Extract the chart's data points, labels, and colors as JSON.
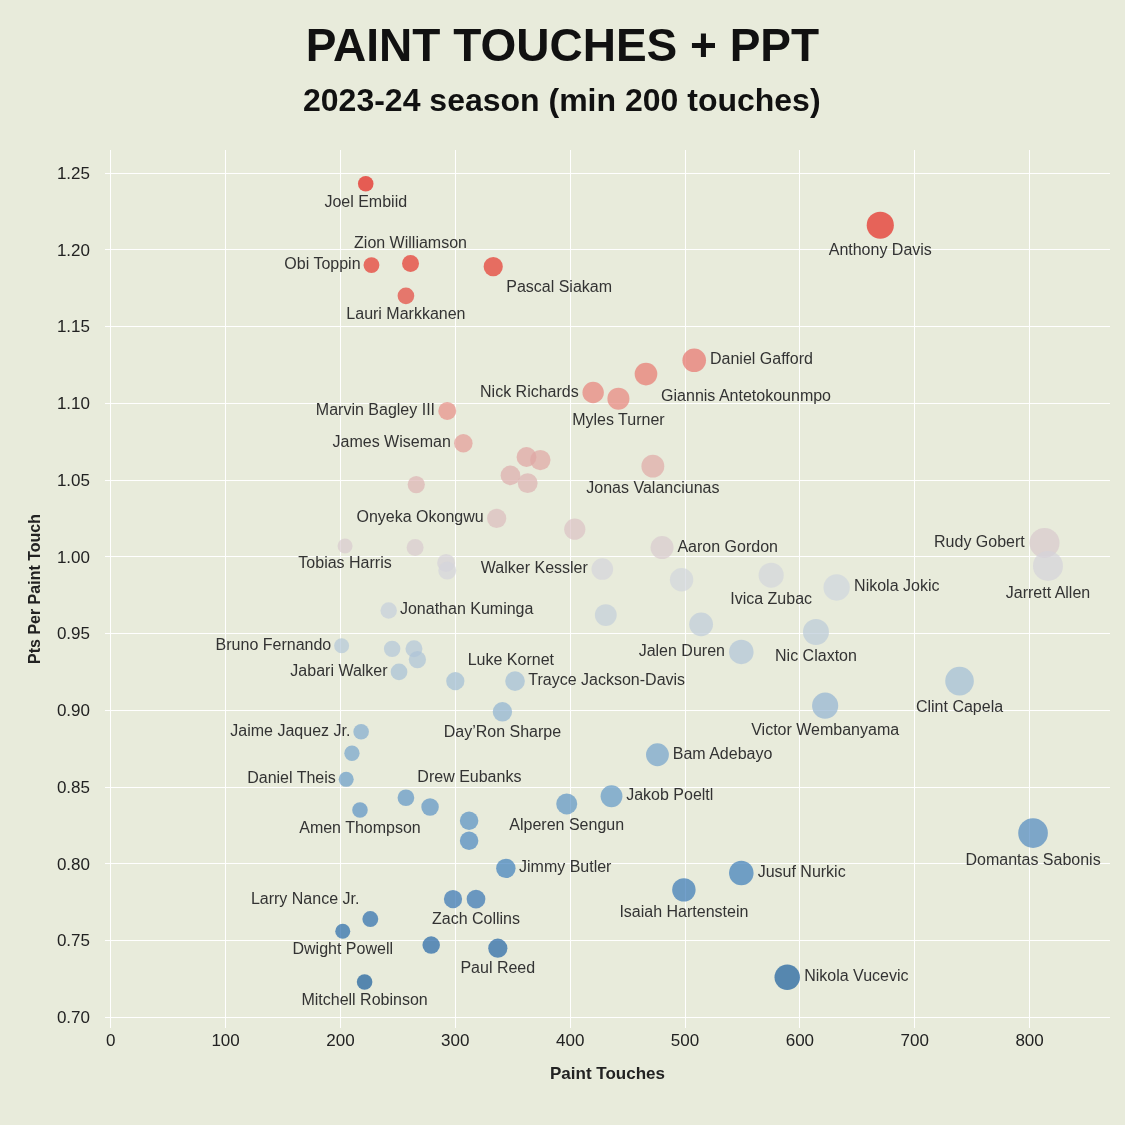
{
  "chart_data": {
    "type": "bubble",
    "title": "PAINT TOUCHES + PPT",
    "subtitle": "2023-24 season (min 200 touches)",
    "xlabel": "Paint Touches",
    "ylabel": "Pts Per Paint Touch",
    "x": [
      222,
      670,
      261,
      227,
      333,
      257,
      508,
      466,
      420,
      442,
      293,
      307,
      362,
      374,
      348,
      363,
      266,
      472,
      336,
      404,
      480,
      813,
      816,
      204,
      265,
      292,
      293,
      428,
      497,
      575,
      632,
      242,
      431,
      514,
      614,
      549,
      201,
      245,
      264,
      267,
      251,
      300,
      352,
      739,
      341,
      622,
      218,
      210,
      205,
      476,
      257,
      278,
      217,
      312,
      312,
      397,
      436,
      803,
      344,
      549,
      499,
      298,
      318,
      226,
      202,
      279,
      337,
      589,
      221
    ],
    "values": [
      1.243,
      1.216,
      1.191,
      1.19,
      1.189,
      1.17,
      1.128,
      1.119,
      1.107,
      1.103,
      1.095,
      1.074,
      1.065,
      1.063,
      1.053,
      1.048,
      1.047,
      1.059,
      1.025,
      1.018,
      1.006,
      1.009,
      0.994,
      1.007,
      1.006,
      0.996,
      0.991,
      0.992,
      0.985,
      0.988,
      0.98,
      0.965,
      0.962,
      0.956,
      0.951,
      0.938,
      0.942,
      0.94,
      0.94,
      0.933,
      0.925,
      0.919,
      0.919,
      0.919,
      0.899,
      0.903,
      0.886,
      0.872,
      0.855,
      0.871,
      0.843,
      0.837,
      0.835,
      0.828,
      0.815,
      0.839,
      0.844,
      0.82,
      0.797,
      0.794,
      0.783,
      0.777,
      0.777,
      0.764,
      0.756,
      0.747,
      0.745,
      0.726,
      0.723
    ],
    "value_labels": [
      "Joel Embiid",
      "Anthony Davis",
      "Zion Williamson",
      "Obi Toppin",
      "Pascal Siakam",
      "Lauri Markkanen",
      "Daniel Gafford",
      "Giannis Antetokounmpo",
      "Nick Richards",
      "Myles Turner",
      "Marvin Bagley III",
      "James Wiseman",
      null,
      null,
      null,
      null,
      null,
      "Jonas Valanciunas",
      "Onyeka Okongwu",
      null,
      "Aaron Gordon",
      "Rudy Gobert",
      "Jarrett Allen",
      "Tobias Harris",
      null,
      null,
      null,
      "Walker Kessler",
      null,
      "Ivica Zubac",
      "Nikola Jokic",
      "Jonathan Kuminga",
      null,
      null,
      "Nic Claxton",
      "Jalen Duren",
      "Bruno Fernando",
      null,
      null,
      null,
      "Jabari Walker",
      "Luke Kornet",
      "Trayce Jackson-Davis",
      "Clint Capela",
      "Day’Ron Sharpe",
      "Victor Wembanyama",
      "Jaime Jaquez Jr.",
      null,
      "Daniel Theis",
      "Bam Adebayo",
      "Drew Eubanks",
      null,
      "Amen Thompson",
      null,
      null,
      "Alperen Sengun",
      "Jakob Poeltl",
      "Domantas Sabonis",
      "Jimmy Butler",
      "Jusuf Nurkic",
      "Isaiah Hartenstein",
      null,
      "Zach Collins",
      "Larry Nance Jr.",
      "Dwight Powell",
      null,
      "Paul Reed",
      "Nikola Vucevic",
      "Mitchell Robinson"
    ],
    "colors": [
      "#e41f1a",
      "#e62a22",
      "#e5352c",
      "#e5362d",
      "#e5372e",
      "#e4463d",
      "#e8746d",
      "#e8776f",
      "#e8827b",
      "#e8857e",
      "#e88e88",
      "#e49b97",
      "#e0a4a2",
      "#e0a6a4",
      "#ddadac",
      "#ddb2b2",
      "#ddb3b3",
      "#dfa9a7",
      "#dcbcbe",
      "#dbc2c4",
      "#d9cbcf",
      "#d9c9cd",
      "#d4d3da",
      "#d9cbcf",
      "#d9cbcf",
      "#d5d2d9",
      "#d4d4db",
      "#d4d4db",
      "#d2d5dd",
      "#d3d5dc",
      "#cfd5de",
      "#c5cfdc",
      "#c3ceda",
      "#bfccda",
      "#bbcad9",
      "#b1c5d8",
      "#b4c7d8",
      "#b2c6d8",
      "#b2c6d8",
      "#adc3d7",
      "#a7c0d6",
      "#a1bdd6",
      "#a1bdd6",
      "#a1bdd6",
      "#8fb2d2",
      "#93b4d3",
      "#82abcf",
      "#75a4cc",
      "#6a9dc9",
      "#74a3cc",
      "#5f96c6",
      "#5b93c5",
      "#5a92c4",
      "#5590c3",
      "#4b88c0",
      "#5d94c5",
      "#6199c7",
      "#5089c1",
      "#3d7fbc",
      "#3c7ebb",
      "#3778b6",
      "#3474b3",
      "#3474b3",
      "#2b6cad",
      "#266aa9",
      "#2365a6",
      "#2264a5",
      "#185d9d",
      "#175b9b"
    ],
    "xlim": [
      -5,
      870
    ],
    "xticks": [
      0,
      100,
      200,
      300,
      400,
      500,
      600,
      700,
      800
    ],
    "sizes": [
      0.27,
      0.82,
      0.32,
      0.28,
      0.41,
      0.31,
      0.62,
      0.57,
      0.51,
      0.54,
      0.36,
      0.38,
      0.44,
      0.46,
      0.43,
      0.44,
      0.33,
      0.58,
      0.41,
      0.5,
      0.59,
      1.0,
      1.0,
      0.25,
      0.32,
      0.36,
      0.36,
      0.52,
      0.61,
      0.7,
      0.77,
      0.3,
      0.53,
      0.63,
      0.75,
      0.67,
      0.25,
      0.3,
      0.32,
      0.33,
      0.31,
      0.37,
      0.43,
      0.91,
      0.42,
      0.76,
      0.27,
      0.26,
      0.25,
      0.58,
      0.31,
      0.34,
      0.27,
      0.38,
      0.38,
      0.49,
      0.53,
      0.98,
      0.42,
      0.67,
      0.61,
      0.37,
      0.39,
      0.28,
      0.25,
      0.34,
      0.41,
      0.72,
      0.27
    ],
    "ylim": [
      0.693,
      1.265
    ],
    "yticks": [
      {
        "value": 0.7,
        "label": "0.70"
      },
      0.75,
      {
        "value": 0.8,
        "label": "0.80"
      },
      0.85,
      {
        "value": 0.9,
        "label": "0.90"
      },
      0.95,
      {
        "value": 1.0,
        "label": "1.00"
      },
      1.05,
      {
        "value": 1.1,
        "label": "1.10"
      },
      1.15,
      {
        "value": 1.2,
        "label": "1.20"
      },
      1.25
    ],
    "grid": true,
    "marker": "circle"
  }
}
